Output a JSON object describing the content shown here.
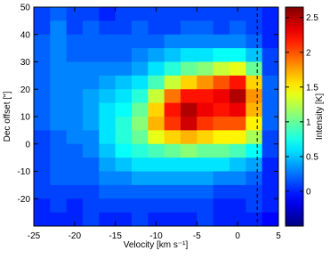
{
  "chart_data": {
    "type": "heatmap",
    "xlabel": "Velocity [km s⁻¹]",
    "ylabel": "Dec offset [\"]",
    "colorbar_label": "Intensity [K]",
    "colormap": "jet",
    "xlim": [
      -25,
      5
    ],
    "xticks": [
      -25,
      -20,
      -15,
      -10,
      -5,
      0,
      5
    ],
    "ylim": [
      -30,
      50
    ],
    "yticks": [
      -20,
      -10,
      0,
      10,
      20,
      30,
      40,
      50
    ],
    "zlim": [
      -0.5,
      2.65
    ],
    "zticks": [
      0,
      0.5,
      1,
      1.5,
      2,
      2.5
    ],
    "reference_line_x": 2.4,
    "x": [
      -24,
      -22,
      -20,
      -18,
      -16,
      -14,
      -12,
      -10,
      -8,
      -6,
      -4,
      -2,
      0,
      2,
      4
    ],
    "y": [
      47.5,
      42.5,
      37.5,
      32.5,
      27.5,
      22.5,
      17.5,
      12.5,
      7.5,
      2.5,
      -2.5,
      -7.5,
      -12.5,
      -17.5,
      -22.5,
      -27.5
    ],
    "z": [
      [
        0.1,
        0.2,
        0.1,
        0.1,
        0.0,
        0.1,
        0.1,
        0.1,
        0.1,
        0.1,
        0.1,
        0.1,
        0.1,
        0.1,
        0.0
      ],
      [
        0.1,
        0.3,
        0.1,
        0.2,
        0.1,
        0.1,
        0.2,
        0.1,
        0.1,
        0.2,
        0.2,
        0.1,
        0.2,
        0.1,
        0.0
      ],
      [
        0.2,
        0.3,
        0.2,
        0.2,
        0.2,
        0.2,
        0.2,
        0.2,
        0.3,
        0.3,
        0.3,
        0.3,
        0.3,
        0.2,
        0.0
      ],
      [
        0.2,
        0.3,
        0.2,
        0.2,
        0.2,
        0.2,
        0.3,
        0.4,
        0.5,
        0.6,
        0.6,
        0.7,
        0.7,
        0.5,
        0.1
      ],
      [
        0.2,
        0.3,
        0.3,
        0.3,
        0.3,
        0.3,
        0.4,
        0.6,
        0.8,
        1.0,
        1.1,
        1.3,
        1.4,
        1.0,
        0.1
      ],
      [
        0.2,
        0.3,
        0.3,
        0.3,
        0.4,
        0.5,
        0.6,
        0.9,
        1.3,
        1.6,
        1.8,
        2.0,
        2.2,
        1.6,
        0.2
      ],
      [
        0.2,
        0.3,
        0.3,
        0.4,
        0.5,
        0.6,
        0.8,
        1.3,
        1.9,
        2.2,
        2.2,
        2.3,
        2.5,
        1.8,
        0.2
      ],
      [
        0.2,
        0.3,
        0.3,
        0.4,
        0.6,
        0.7,
        1.0,
        1.6,
        2.2,
        2.5,
        2.3,
        2.2,
        2.3,
        1.7,
        0.2
      ],
      [
        0.2,
        0.3,
        0.3,
        0.4,
        0.6,
        0.8,
        1.1,
        1.7,
        2.1,
        2.4,
        2.1,
        2.0,
        2.0,
        1.5,
        0.2
      ],
      [
        0.1,
        0.2,
        0.3,
        0.3,
        0.6,
        0.8,
        1.0,
        1.4,
        1.6,
        1.7,
        1.6,
        1.5,
        1.5,
        1.2,
        0.1
      ],
      [
        0.1,
        0.2,
        0.2,
        0.3,
        0.5,
        0.7,
        0.8,
        0.9,
        1.0,
        1.1,
        1.0,
        1.0,
        0.9,
        0.7,
        0.1
      ],
      [
        0.1,
        0.2,
        0.2,
        0.2,
        0.4,
        0.5,
        0.6,
        0.6,
        0.6,
        0.6,
        0.6,
        0.6,
        0.5,
        0.4,
        0.0
      ],
      [
        0.1,
        0.2,
        0.2,
        0.2,
        0.3,
        0.3,
        0.4,
        0.4,
        0.4,
        0.4,
        0.4,
        0.3,
        0.3,
        0.2,
        0.0
      ],
      [
        0.1,
        0.1,
        0.1,
        0.1,
        0.2,
        0.2,
        0.2,
        0.2,
        0.2,
        0.2,
        0.2,
        0.1,
        0.1,
        0.1,
        0.0
      ],
      [
        0.0,
        0.1,
        0.0,
        0.1,
        0.1,
        0.1,
        0.1,
        0.1,
        0.1,
        0.1,
        0.1,
        0.0,
        0.0,
        0.1,
        0.0
      ],
      [
        0.0,
        0.0,
        0.0,
        0.1,
        0.0,
        0.0,
        0.1,
        0.0,
        0.0,
        0.0,
        0.1,
        0.0,
        0.0,
        0.0,
        -0.1
      ]
    ]
  }
}
